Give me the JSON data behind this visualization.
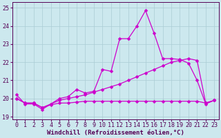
{
  "xlabel": "Windchill (Refroidissement éolien,°C)",
  "background_color": "#cce8ee",
  "grid_color": "#aaccd4",
  "line_color": "#cc00cc",
  "xlim": [
    -0.5,
    23.5
  ],
  "ylim": [
    18.85,
    25.3
  ],
  "yticks": [
    19,
    20,
    21,
    22,
    23,
    24,
    25
  ],
  "xticks": [
    0,
    1,
    2,
    3,
    4,
    5,
    6,
    7,
    8,
    9,
    10,
    11,
    12,
    13,
    14,
    15,
    16,
    17,
    18,
    19,
    20,
    21,
    22,
    23
  ],
  "line1": [
    20.2,
    19.7,
    19.7,
    19.4,
    19.7,
    20.0,
    20.1,
    20.5,
    20.3,
    20.4,
    21.6,
    21.5,
    23.3,
    23.3,
    24.0,
    24.85,
    23.6,
    22.2,
    22.2,
    22.15,
    21.95,
    21.0,
    19.7,
    19.9
  ],
  "line2": [
    20.0,
    19.75,
    19.75,
    19.5,
    19.7,
    19.9,
    20.0,
    20.1,
    20.2,
    20.35,
    20.5,
    20.65,
    20.8,
    21.0,
    21.2,
    21.4,
    21.6,
    21.8,
    22.0,
    22.1,
    22.2,
    22.1,
    19.75,
    19.9
  ],
  "line3": [
    20.0,
    19.75,
    19.75,
    19.5,
    19.65,
    19.75,
    19.75,
    19.8,
    19.85,
    19.85,
    19.85,
    19.85,
    19.85,
    19.85,
    19.85,
    19.85,
    19.85,
    19.85,
    19.85,
    19.85,
    19.85,
    19.85,
    19.75,
    19.9
  ],
  "tick_fontsize": 6,
  "xlabel_fontsize": 6.5,
  "marker_size": 2.5,
  "linewidth": 0.9
}
